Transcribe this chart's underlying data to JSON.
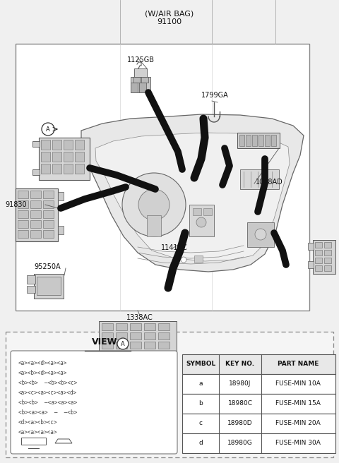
{
  "title_line1": "(W/AIR BAG)",
  "title_line2": "91100",
  "bg_color": "#f0f0f0",
  "figsize": [
    4.8,
    6.56
  ],
  "dpi": 100,
  "table_headers": [
    "SYMBOL",
    "KEY NO.",
    "PART NAME"
  ],
  "table_rows": [
    [
      "a",
      "18980J",
      "FUSE-MIN 10A"
    ],
    [
      "b",
      "18980C",
      "FUSE-MIN 15A"
    ],
    [
      "c",
      "18980D",
      "FUSE-MIN 20A"
    ],
    [
      "d",
      "18980G",
      "FUSE-MIN 30A"
    ]
  ]
}
